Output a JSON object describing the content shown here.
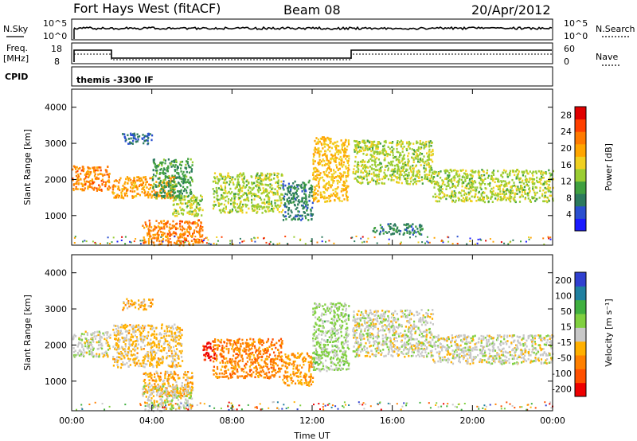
{
  "header": {
    "station": "Fort Hays West (fitACF)",
    "beam": "Beam 08",
    "date": "20/Apr/2012"
  },
  "top_panels": {
    "nsky_label": "N.Sky",
    "nsearch_label": "N.Search",
    "noise_ticks": [
      "10^5",
      "10^0"
    ],
    "freq_label_1": "Freq.",
    "freq_label_2": "[MHz]",
    "freq_ticks": [
      "18",
      "8"
    ],
    "nave_label": "Nave",
    "nave_ticks": [
      "60",
      "0"
    ],
    "cpid_label": "CPID",
    "cpid_text": "themis -3300 IF"
  },
  "chart_data": [
    {
      "type": "heatmap",
      "title": "",
      "xlabel": "",
      "ylabel": "Slant Range [km]",
      "x_ticks": [
        "00:00",
        "04:00",
        "08:00",
        "12:00",
        "16:00",
        "20:00",
        "00:00"
      ],
      "x_hours": [
        0,
        4,
        8,
        12,
        16,
        20,
        24
      ],
      "ylim": [
        180,
        4500
      ],
      "y_ticks": [
        1000,
        2000,
        3000,
        4000
      ],
      "colorbar": {
        "label": "Power [dB]",
        "ticks": [
          "4",
          "8",
          "12",
          "16",
          "20",
          "24",
          "28"
        ],
        "range": [
          0,
          30
        ],
        "colors": [
          "#1a1aff",
          "#2a4fd0",
          "#2c7a5e",
          "#40a040",
          "#9acd32",
          "#f0d020",
          "#ffa500",
          "#ff7a00",
          "#ff4000",
          "#e00000"
        ]
      },
      "regions": [
        {
          "t": [
            0.0,
            1.9
          ],
          "r": [
            1700,
            2400
          ],
          "v": 22
        },
        {
          "t": [
            2.0,
            5.2
          ],
          "r": [
            1500,
            2100
          ],
          "v": 20
        },
        {
          "t": [
            2.5,
            4.0
          ],
          "r": [
            3000,
            3300
          ],
          "v": 6
        },
        {
          "t": [
            4.0,
            6.0
          ],
          "r": [
            1500,
            2600
          ],
          "v": 10
        },
        {
          "t": [
            3.5,
            6.5
          ],
          "r": [
            200,
            900
          ],
          "v": 22
        },
        {
          "t": [
            5.0,
            6.5
          ],
          "r": [
            1000,
            1600
          ],
          "v": 14
        },
        {
          "t": [
            7.0,
            10.5
          ],
          "r": [
            1100,
            2200
          ],
          "v": 14
        },
        {
          "t": [
            10.5,
            12.0
          ],
          "r": [
            900,
            2000
          ],
          "v": 8
        },
        {
          "t": [
            12.0,
            13.8
          ],
          "r": [
            1400,
            3200
          ],
          "v": 18
        },
        {
          "t": [
            14.0,
            18.0
          ],
          "r": [
            1900,
            3100
          ],
          "v": 14
        },
        {
          "t": [
            15.0,
            17.5
          ],
          "r": [
            500,
            800
          ],
          "v": 8
        },
        {
          "t": [
            18.0,
            24.0
          ],
          "r": [
            1400,
            2300
          ],
          "v": 14
        }
      ]
    },
    {
      "type": "heatmap",
      "title": "",
      "xlabel": "Time UT",
      "ylabel": "Slant Range [km]",
      "x_ticks": [
        "00:00",
        "04:00",
        "08:00",
        "12:00",
        "16:00",
        "20:00",
        "00:00"
      ],
      "x_hours": [
        0,
        4,
        8,
        12,
        16,
        20,
        24
      ],
      "ylim": [
        180,
        4500
      ],
      "y_ticks": [
        1000,
        2000,
        3000,
        4000
      ],
      "colorbar": {
        "label": "Velocity [m s⁻¹]",
        "ticks": [
          "200",
          "100",
          "50",
          "15",
          "-15",
          "-50",
          "-100",
          "-200"
        ],
        "range": [
          -250,
          250
        ],
        "colors": [
          "#ee0000",
          "#ff5000",
          "#ff8000",
          "#ffb000",
          "#c8c8c8",
          "#80d040",
          "#40b040",
          "#2080a0",
          "#3040d0"
        ]
      },
      "regions": [
        {
          "t": [
            0.0,
            1.9
          ],
          "r": [
            1700,
            2400
          ],
          "v": 0
        },
        {
          "t": [
            2.0,
            5.5
          ],
          "r": [
            1400,
            2600
          ],
          "v": -40
        },
        {
          "t": [
            2.5,
            4.0
          ],
          "r": [
            3000,
            3300
          ],
          "v": -60
        },
        {
          "t": [
            3.5,
            6.0
          ],
          "r": [
            600,
            1300
          ],
          "v": -60
        },
        {
          "t": [
            3.5,
            6.0
          ],
          "r": [
            200,
            900
          ],
          "v": 0
        },
        {
          "t": [
            6.5,
            7.2
          ],
          "r": [
            1600,
            2100
          ],
          "v": -220
        },
        {
          "t": [
            7.0,
            10.5
          ],
          "r": [
            1100,
            2200
          ],
          "v": -110
        },
        {
          "t": [
            10.5,
            12.0
          ],
          "r": [
            900,
            1800
          ],
          "v": -80
        },
        {
          "t": [
            12.0,
            13.8
          ],
          "r": [
            1300,
            3200
          ],
          "v": 40
        },
        {
          "t": [
            14.0,
            18.0
          ],
          "r": [
            1700,
            3000
          ],
          "v": 0
        },
        {
          "t": [
            18.0,
            24.0
          ],
          "r": [
            1500,
            2300
          ],
          "v": 0
        }
      ]
    }
  ]
}
